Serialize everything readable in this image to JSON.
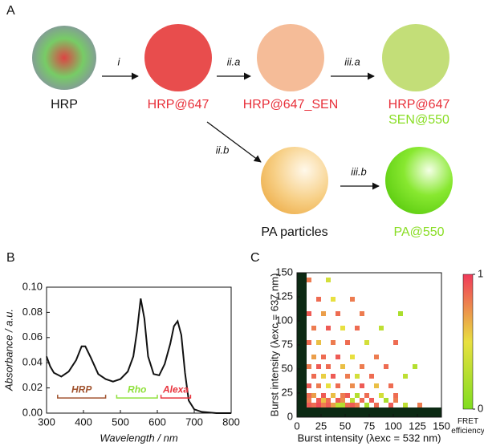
{
  "diagram": {
    "panel_label": "A",
    "nodes": [
      {
        "label": "HRP"
      },
      {
        "label": "HRP@647"
      },
      {
        "label": "HRP@647_SEN"
      },
      {
        "label": "HRP@647",
        "sublabel": "SEN@550"
      },
      {
        "label": "PA particles"
      },
      {
        "label": "PA@550"
      }
    ],
    "steps": [
      "i",
      "ii.a",
      "iii.a",
      "ii.b",
      "iii.b"
    ]
  },
  "chart_data": [
    {
      "type": "line",
      "panel_label": "B",
      "xlabel": "Wavelength / nm",
      "ylabel": "Absorbance / a.u.",
      "color": "#111111",
      "x": [
        300,
        310,
        320,
        340,
        360,
        380,
        395,
        405,
        420,
        440,
        460,
        480,
        500,
        520,
        535,
        545,
        555,
        565,
        575,
        590,
        605,
        620,
        635,
        645,
        655,
        665,
        675,
        685,
        700,
        720,
        760,
        800
      ],
      "values": [
        0.045,
        0.037,
        0.032,
        0.029,
        0.033,
        0.042,
        0.053,
        0.053,
        0.044,
        0.031,
        0.027,
        0.025,
        0.027,
        0.033,
        0.045,
        0.065,
        0.091,
        0.075,
        0.045,
        0.031,
        0.03,
        0.039,
        0.055,
        0.069,
        0.073,
        0.062,
        0.032,
        0.01,
        0.003,
        0.001,
        0.0,
        0.0
      ],
      "xlim": [
        300,
        800
      ],
      "xticks": [
        300,
        400,
        500,
        600,
        700,
        800
      ],
      "ylim": [
        0,
        0.1
      ],
      "yticks": [
        {
          "value": 0,
          "label": "0.00"
        },
        {
          "value": 0.02,
          "label": "0.02"
        },
        {
          "value": 0.04,
          "label": "0.04"
        },
        {
          "value": 0.06,
          "label": "0.06"
        },
        {
          "value": 0.08,
          "label": "0.08"
        },
        {
          "value": 0.1,
          "label": "0.10"
        }
      ],
      "ranges": [
        {
          "label": "HRP",
          "color": "#a0522d",
          "x": [
            330,
            460
          ],
          "y": 0.012
        },
        {
          "label": "Rho",
          "color": "#8ee03a",
          "x": [
            490,
            600
          ],
          "y": 0.012
        },
        {
          "label": "Alexa",
          "color": "#e8303a",
          "x": [
            610,
            690
          ],
          "y": 0.012
        }
      ]
    },
    {
      "type": "heatmap",
      "panel_label": "C",
      "xlabel": "Burst intensity (λexc = 532 nm)",
      "ylabel": "Burst intensity (λexc = 637 nm)",
      "colorbar_label": "FRET efficiency",
      "colorbar_ticks": [
        0,
        1
      ],
      "colormap": [
        "#80dd20",
        "#e8e040",
        "#f03a5a"
      ],
      "xlim": [
        0,
        150
      ],
      "xticks": [
        0,
        25,
        50,
        75,
        100,
        125,
        150
      ],
      "ylim": [
        0,
        150
      ],
      "yticks": [
        0,
        25,
        50,
        75,
        100,
        125,
        150
      ],
      "x": [
        10,
        15,
        20,
        25,
        30,
        35,
        40,
        45,
        50,
        55,
        60,
        70,
        80,
        95,
        110,
        125,
        10,
        20,
        25,
        30,
        40,
        45,
        55,
        65,
        75,
        90,
        100,
        10,
        15,
        25,
        35,
        45,
        50,
        60,
        70,
        85,
        100,
        10,
        20,
        30,
        40,
        55,
        65,
        80,
        95,
        15,
        25,
        35,
        50,
        60,
        75,
        110,
        10,
        20,
        30,
        45,
        65,
        90,
        120,
        15,
        25,
        40,
        55,
        80,
        10,
        20,
        35,
        50,
        70,
        100,
        15,
        30,
        45,
        60,
        85,
        10,
        25,
        40,
        65,
        105,
        20,
        35,
        55,
        10,
        30
      ],
      "y": [
        10,
        10,
        10,
        10,
        10,
        10,
        10,
        10,
        10,
        10,
        10,
        10,
        10,
        10,
        10,
        10,
        15,
        15,
        15,
        15,
        15,
        15,
        15,
        15,
        15,
        15,
        15,
        20,
        20,
        20,
        20,
        20,
        20,
        20,
        20,
        20,
        20,
        30,
        30,
        30,
        30,
        30,
        30,
        30,
        30,
        40,
        40,
        40,
        40,
        40,
        40,
        40,
        50,
        50,
        50,
        50,
        50,
        50,
        50,
        60,
        60,
        60,
        60,
        60,
        75,
        75,
        75,
        75,
        75,
        75,
        90,
        90,
        90,
        90,
        90,
        105,
        105,
        105,
        105,
        105,
        120,
        120,
        120,
        140,
        140
      ],
      "values": [
        0.9,
        0.85,
        0.95,
        0.8,
        0.9,
        0.7,
        0.3,
        0.25,
        0.85,
        0.9,
        0.8,
        0.2,
        0.85,
        0.9,
        0.3,
        0.8,
        0.8,
        0.9,
        0.6,
        0.85,
        0.9,
        0.75,
        0.3,
        0.85,
        0.9,
        0.2,
        0.8,
        0.85,
        0.7,
        0.9,
        0.6,
        0.8,
        0.9,
        0.25,
        0.85,
        0.4,
        0.85,
        0.9,
        0.8,
        0.5,
        0.85,
        0.75,
        0.9,
        0.6,
        0.85,
        0.85,
        0.55,
        0.9,
        0.8,
        0.4,
        0.85,
        0.3,
        0.8,
        0.9,
        0.85,
        0.6,
        0.8,
        0.85,
        0.25,
        0.7,
        0.85,
        0.9,
        0.5,
        0.8,
        0.85,
        0.6,
        0.8,
        0.85,
        0.4,
        0.85,
        0.8,
        0.9,
        0.5,
        0.85,
        0.3,
        0.9,
        0.7,
        0.85,
        0.8,
        0.2,
        0.85,
        0.5,
        0.8,
        0.8,
        0.4
      ]
    }
  ]
}
